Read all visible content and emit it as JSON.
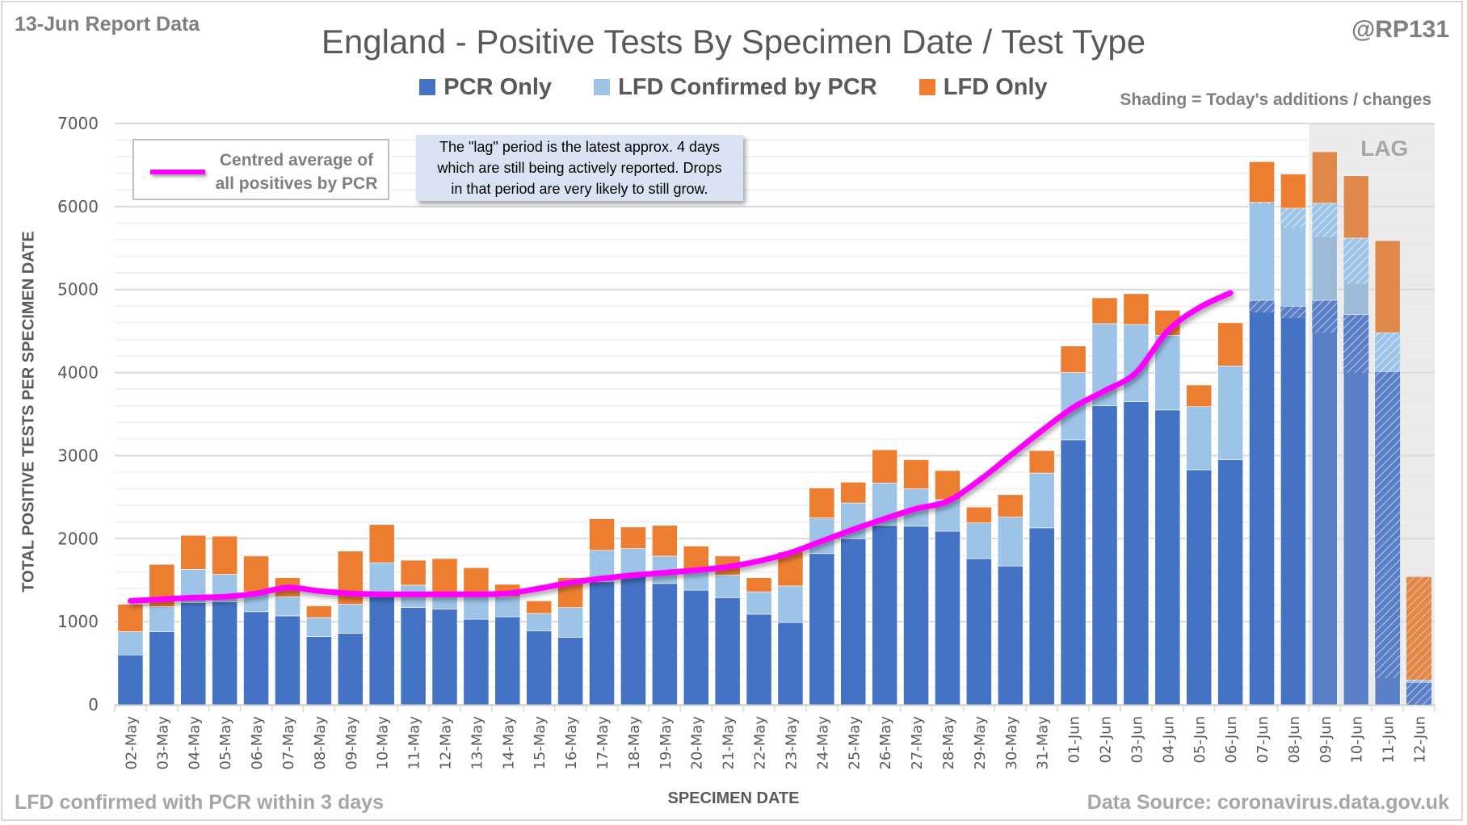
{
  "header": {
    "report_date": "13-Jun Report Data",
    "handle": "@RP131",
    "shading_note": "Shading = Today's additions / changes"
  },
  "footer": {
    "left_note": "LFD confirmed with PCR within 3 days",
    "source": "Data Source: coronavirus.data.gov.uk"
  },
  "line_legend": {
    "label_line1": "Centred average of",
    "label_line2": "all positives by PCR"
  },
  "callout": {
    "line1": "The \"lag\" period is the latest approx. 4 days",
    "line2": "which are still being actively reported.  Drops",
    "line3": "in that period are very likely to still grow."
  },
  "colors": {
    "pcr_only": "#4472c4",
    "lfd_confirmed": "#9dc3e6",
    "lfd_only": "#ed7d31",
    "average_line": "#ff00ff",
    "lag_shading": "#ebebeb"
  },
  "chart_data": {
    "type": "bar",
    "stacked": true,
    "title": "England - Positive Tests By Specimen Date / Test Type",
    "xlabel": "SPECIMEN DATE",
    "ylabel": "TOTAL POSITIVE TESTS PER SPECIMEN DATE",
    "ylim": [
      0,
      7000
    ],
    "yticks": [
      0,
      1000,
      2000,
      3000,
      4000,
      5000,
      6000,
      7000
    ],
    "grid": true,
    "legend_position": "top-center",
    "lag_label": "LAG",
    "lag_categories": [
      "09-Jun",
      "10-Jun",
      "11-Jun",
      "12-Jun"
    ],
    "categories": [
      "02-May",
      "03-May",
      "04-May",
      "05-May",
      "06-May",
      "07-May",
      "08-May",
      "09-May",
      "10-May",
      "11-May",
      "12-May",
      "13-May",
      "14-May",
      "15-May",
      "16-May",
      "17-May",
      "18-May",
      "19-May",
      "20-May",
      "21-May",
      "22-May",
      "23-May",
      "24-May",
      "25-May",
      "26-May",
      "27-May",
      "28-May",
      "29-May",
      "30-May",
      "31-May",
      "01-Jun",
      "02-Jun",
      "03-Jun",
      "04-Jun",
      "05-Jun",
      "06-Jun",
      "07-Jun",
      "08-Jun",
      "09-Jun",
      "10-Jun",
      "11-Jun",
      "12-Jun"
    ],
    "series": [
      {
        "name": "PCR Only",
        "values": [
          600,
          880,
          1230,
          1240,
          1120,
          1070,
          820,
          860,
          1300,
          1170,
          1150,
          1030,
          1060,
          890,
          810,
          1480,
          1570,
          1460,
          1380,
          1290,
          1090,
          990,
          1820,
          2000,
          2160,
          2150,
          2090,
          1760,
          1670,
          2130,
          3190,
          3600,
          3650,
          3550,
          2830,
          2950,
          4870,
          4800,
          4870,
          4700,
          4010,
          270
        ]
      },
      {
        "name": "LFD Confirmed by PCR",
        "values": [
          280,
          300,
          400,
          330,
          240,
          230,
          230,
          350,
          410,
          270,
          180,
          300,
          240,
          210,
          360,
          380,
          310,
          330,
          240,
          270,
          270,
          440,
          430,
          430,
          510,
          450,
          380,
          430,
          590,
          660,
          810,
          990,
          930,
          900,
          760,
          1130,
          1180,
          1180,
          1170,
          920,
          470,
          30
        ]
      },
      {
        "name": "LFD Only",
        "values": [
          330,
          510,
          410,
          460,
          430,
          230,
          140,
          640,
          460,
          300,
          430,
          320,
          150,
          150,
          360,
          380,
          260,
          370,
          290,
          230,
          170,
          410,
          360,
          250,
          400,
          350,
          350,
          190,
          270,
          270,
          320,
          310,
          370,
          300,
          260,
          520,
          490,
          410,
          620,
          750,
          1110,
          1240
        ]
      },
      {
        "name": "Centred average of all positives by PCR",
        "type": "line",
        "values": [
          1250,
          1270,
          1290,
          1300,
          1340,
          1410,
          1370,
          1340,
          1330,
          1330,
          1330,
          1330,
          1340,
          1400,
          1470,
          1520,
          1560,
          1590,
          1620,
          1660,
          1730,
          1830,
          1970,
          2110,
          2240,
          2360,
          2450,
          2700,
          3000,
          3300,
          3580,
          3780,
          4000,
          4500,
          4780,
          4960,
          null,
          null,
          null,
          null,
          null,
          null
        ]
      }
    ]
  }
}
